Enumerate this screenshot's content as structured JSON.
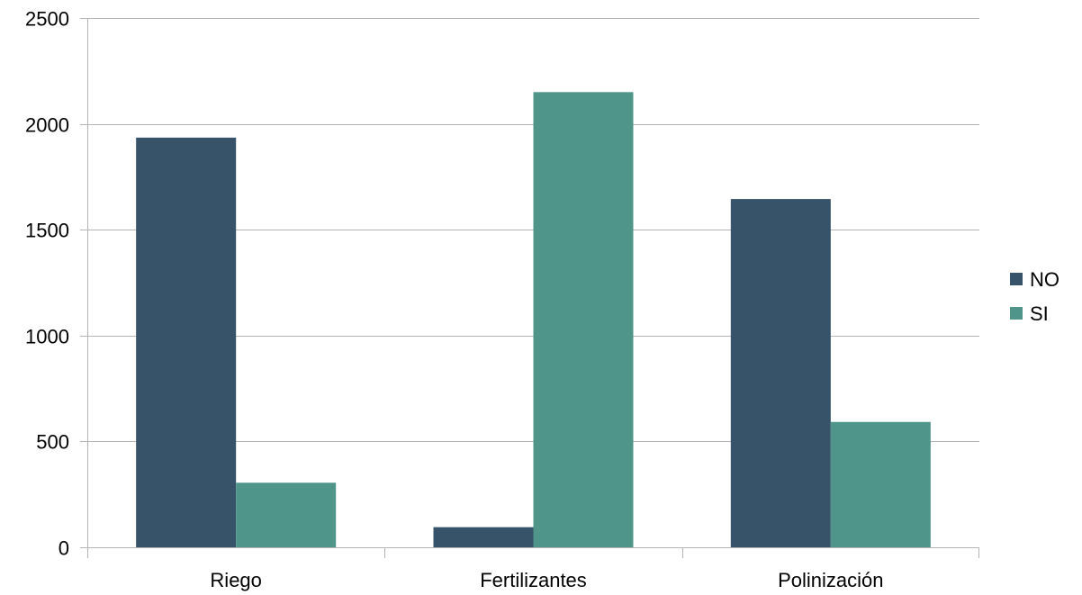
{
  "chart_data": {
    "type": "bar",
    "title": "",
    "xlabel": "",
    "ylabel": "",
    "categories": [
      "Riego",
      "Fertilizantes",
      "Polinización"
    ],
    "series": [
      {
        "name": "NO",
        "values": [
          1935,
          95,
          1645
        ],
        "color": "#36536a"
      },
      {
        "name": "SI",
        "values": [
          305,
          2150,
          592
        ],
        "color": "#50958a"
      }
    ],
    "ylim": [
      0,
      2500
    ],
    "yticks": [
      0,
      500,
      1000,
      1500,
      2000,
      2500
    ],
    "grid": true,
    "legend_position": "right",
    "gridline_color": "#b3b3b3"
  }
}
